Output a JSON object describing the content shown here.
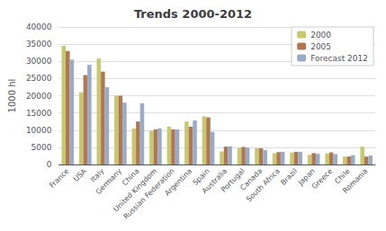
{
  "chart_data": {
    "type": "bar",
    "title": "Trends 2000-2012",
    "ylabel": "1000 hl",
    "categories": [
      "France",
      "USA",
      "Italy",
      "Germany",
      "China",
      "United Kingdom",
      "Russian Federation",
      "Argentina",
      "Spain",
      "Australia",
      "Portugal",
      "Canada",
      "South Africa",
      "Brazil",
      "Japan",
      "Greece",
      "Chile",
      "Romania"
    ],
    "series": [
      {
        "name": "2000",
        "color": "#c8c870",
        "values": [
          34500,
          21000,
          30800,
          20000,
          10500,
          9800,
          11000,
          12500,
          14000,
          3800,
          4800,
          4700,
          3300,
          3500,
          2800,
          3200,
          2300,
          5200
        ]
      },
      {
        "name": "2005",
        "color": "#b07850",
        "values": [
          33000,
          26000,
          27000,
          20000,
          12500,
          10200,
          10200,
          11000,
          13700,
          5200,
          5100,
          4700,
          3600,
          3700,
          3300,
          3500,
          2300,
          2300
        ]
      },
      {
        "name": "Forecast 2012",
        "color": "#9aabca",
        "values": [
          30500,
          29000,
          22500,
          18000,
          17800,
          10500,
          10200,
          12800,
          9500,
          5300,
          4900,
          4200,
          3700,
          3700,
          3100,
          3000,
          2700,
          2600
        ]
      }
    ],
    "ylim": [
      0,
      40000
    ],
    "yticks": [
      0,
      5000,
      10000,
      15000,
      20000,
      25000,
      30000,
      35000,
      40000
    ],
    "grid": true,
    "legend": "upper right"
  }
}
